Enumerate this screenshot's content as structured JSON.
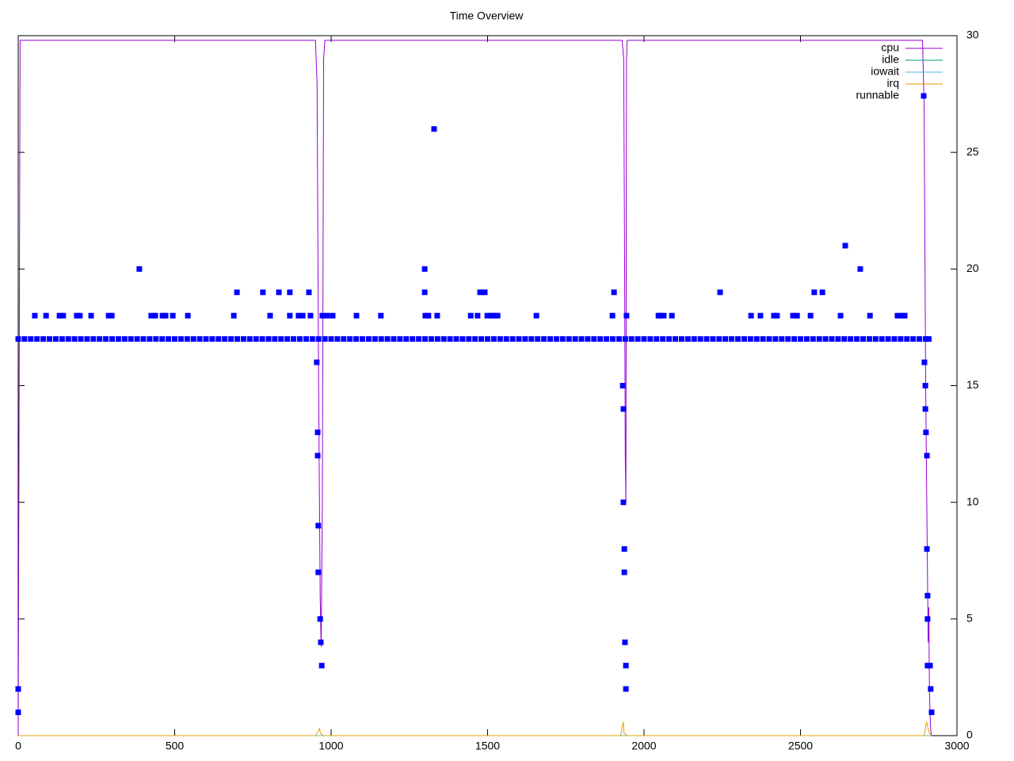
{
  "chart_data": {
    "type": "line",
    "title": "Time Overview",
    "xlim": [
      0,
      3000
    ],
    "xticks": [
      0,
      500,
      1000,
      1500,
      2000,
      2500,
      3000
    ],
    "ylim": [
      0,
      30
    ],
    "yticks": [
      0,
      5,
      10,
      15,
      20,
      25,
      30
    ],
    "legend": "top-right",
    "series": [
      {
        "name": "cpu",
        "color": "#9400d3",
        "style": "line",
        "x": [
          0,
          3,
          6,
          950,
          955,
          960,
          965,
          968,
          972,
          976,
          980,
          1930,
          1935,
          1938,
          1940,
          1942,
          1944,
          1946,
          2890,
          2895,
          2900,
          2905,
          2908,
          2910,
          2912,
          2915,
          2918
        ],
        "values": [
          0,
          15,
          29.8,
          29.8,
          28,
          15,
          6,
          3.8,
          10,
          29,
          29.8,
          29.8,
          29,
          20,
          12,
          10,
          29,
          29.8,
          29.8,
          27,
          15,
          8,
          4,
          5.5,
          2,
          0.5,
          0
        ]
      },
      {
        "name": "idle",
        "color": "#009e73",
        "style": "line",
        "x": [
          0,
          2918
        ],
        "values": [
          0,
          0
        ]
      },
      {
        "name": "iowait",
        "color": "#56b4e9",
        "style": "line",
        "x": [
          0,
          2918
        ],
        "values": [
          0,
          0
        ]
      },
      {
        "name": "irq",
        "color": "#e69f00",
        "style": "line",
        "x": [
          0,
          950,
          963,
          966,
          975,
          1925,
          1934,
          1936,
          1945,
          2895,
          2903,
          2906,
          2912,
          2918
        ],
        "values": [
          0,
          0,
          0.3,
          0.1,
          0,
          0,
          0.6,
          0.1,
          0,
          0,
          0.6,
          0.4,
          0.1,
          0
        ]
      },
      {
        "name": "runnable",
        "color": "#0000ff",
        "style": "points",
        "x": [
          0,
          20,
          40,
          60,
          80,
          100,
          120,
          140,
          160,
          180,
          200,
          220,
          240,
          260,
          280,
          300,
          320,
          340,
          360,
          380,
          400,
          420,
          440,
          460,
          480,
          500,
          520,
          540,
          560,
          580,
          600,
          620,
          640,
          660,
          680,
          700,
          720,
          740,
          760,
          780,
          800,
          820,
          840,
          860,
          880,
          900,
          920,
          940,
          960,
          980,
          1000,
          1020,
          1040,
          1060,
          1080,
          1100,
          1120,
          1140,
          1160,
          1180,
          1200,
          1220,
          1240,
          1260,
          1280,
          1300,
          1320,
          1340,
          1360,
          1380,
          1400,
          1420,
          1440,
          1460,
          1480,
          1500,
          1520,
          1540,
          1560,
          1580,
          1600,
          1620,
          1640,
          1660,
          1680,
          1700,
          1720,
          1740,
          1760,
          1780,
          1800,
          1820,
          1840,
          1860,
          1880,
          1900,
          1920,
          1940,
          1960,
          1980,
          2000,
          2020,
          2040,
          2060,
          2080,
          2100,
          2120,
          2140,
          2160,
          2180,
          2200,
          2220,
          2240,
          2260,
          2280,
          2300,
          2320,
          2340,
          2360,
          2380,
          2400,
          2420,
          2440,
          2460,
          2480,
          2500,
          2520,
          2540,
          2560,
          2580,
          2600,
          2620,
          2640,
          2660,
          2680,
          2700,
          2720,
          2740,
          2760,
          2780,
          2800,
          2820,
          2840,
          2860,
          2880,
          2900,
          2910,
          0,
          0,
          53,
          89,
          132,
          144,
          187,
          197,
          233,
          289,
          299,
          387,
          425,
          438,
          461,
          471,
          494,
          542,
          689,
          699,
          782,
          805,
          833,
          868,
          868,
          896,
          909,
          929,
          934,
          972,
          987,
          1005,
          1081,
          1159,
          954,
          957,
          957,
          959,
          959,
          965,
          967,
          970,
          1299,
          1299,
          1301,
          1311,
          1329,
          1339,
          1446,
          1468,
          1476,
          1491,
          1499,
          1511,
          1521,
          1532,
          1656,
          1899,
          1904,
          1932,
          1934,
          1934,
          1937,
          1937,
          1939,
          1942,
          1942,
          1944,
          2046,
          2053,
          2063,
          2089,
          2243,
          2342,
          2372,
          2415,
          2425,
          2476,
          2489,
          2532,
          2544,
          2570,
          2628,
          2643,
          2691,
          2722,
          2810,
          2823,
          2833,
          2896,
          2899,
          2899,
          2901,
          2904,
          2904,
          2906,
          2906,
          2906,
          2914,
          2916,
          2919
        ],
        "values": [
          17,
          17,
          17,
          17,
          17,
          17,
          17,
          17,
          17,
          17,
          17,
          17,
          17,
          17,
          17,
          17,
          17,
          17,
          17,
          17,
          17,
          17,
          17,
          17,
          17,
          17,
          17,
          17,
          17,
          17,
          17,
          17,
          17,
          17,
          17,
          17,
          17,
          17,
          17,
          17,
          17,
          17,
          17,
          17,
          17,
          17,
          17,
          17,
          17,
          17,
          17,
          17,
          17,
          17,
          17,
          17,
          17,
          17,
          17,
          17,
          17,
          17,
          17,
          17,
          17,
          17,
          17,
          17,
          17,
          17,
          17,
          17,
          17,
          17,
          17,
          17,
          17,
          17,
          17,
          17,
          17,
          17,
          17,
          17,
          17,
          17,
          17,
          17,
          17,
          17,
          17,
          17,
          17,
          17,
          17,
          17,
          17,
          17,
          17,
          17,
          17,
          17,
          17,
          17,
          17,
          17,
          17,
          17,
          17,
          17,
          17,
          17,
          17,
          17,
          17,
          17,
          17,
          17,
          17,
          17,
          17,
          17,
          17,
          17,
          17,
          17,
          17,
          17,
          17,
          17,
          17,
          17,
          17,
          17,
          17,
          17,
          17,
          17,
          17,
          17,
          17,
          17,
          17,
          17,
          17,
          17,
          17,
          2,
          1,
          18,
          18,
          18,
          18,
          18,
          18,
          18,
          18,
          18,
          20,
          18,
          18,
          18,
          18,
          18,
          18,
          18,
          19,
          19,
          18,
          19,
          19,
          18,
          18,
          18,
          19,
          18,
          18,
          18,
          18,
          18,
          18,
          16,
          13,
          12,
          9,
          7,
          5,
          4,
          3,
          20,
          19,
          18,
          18,
          26,
          18,
          18,
          18,
          19,
          19,
          18,
          18,
          18,
          18,
          18,
          18,
          19,
          15,
          14,
          10,
          8,
          7,
          4,
          3,
          2,
          18,
          18,
          18,
          18,
          18,
          19,
          18,
          18,
          18,
          18,
          18,
          18,
          18,
          19,
          19,
          18,
          21,
          20,
          18,
          18,
          18,
          18,
          16,
          15,
          14,
          13,
          12,
          8,
          6,
          5,
          3,
          3,
          2,
          1
        ]
      }
    ]
  }
}
